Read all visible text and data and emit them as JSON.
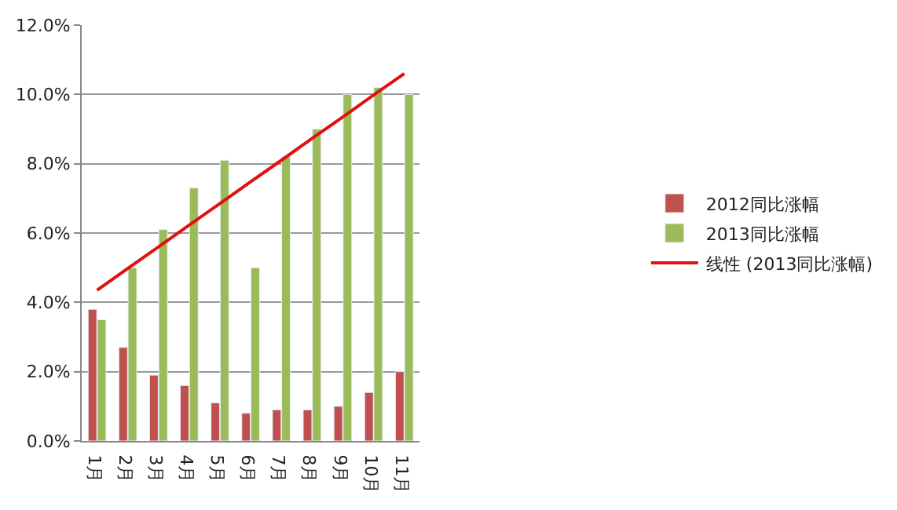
{
  "chart_data": {
    "type": "bar",
    "categories": [
      "1月",
      "2月",
      "3月",
      "4月",
      "5月",
      "6月",
      "7月",
      "8月",
      "9月",
      "10月",
      "11月"
    ],
    "series": [
      {
        "name": "2012同比涨幅",
        "color": "#c0504d",
        "values": [
          3.8,
          2.7,
          1.9,
          1.6,
          1.1,
          0.8,
          0.9,
          0.9,
          1.0,
          1.4,
          2.0
        ]
      },
      {
        "name": "2013同比涨幅",
        "color": "#9bbb59",
        "values": [
          3.5,
          5.0,
          6.1,
          7.3,
          8.1,
          5.0,
          8.2,
          9.0,
          10.0,
          10.2,
          10.0
        ]
      },
      {
        "name": "线性 (2013同比涨幅)",
        "type": "line",
        "color": "#e01010",
        "values": [
          4.35,
          4.98,
          5.6,
          6.23,
          6.85,
          7.48,
          8.1,
          8.73,
          9.35,
          9.98,
          10.6
        ]
      }
    ],
    "ylim": [
      0,
      12
    ],
    "yticks": [
      {
        "value": 0,
        "label": "0.0%"
      },
      {
        "value": 2,
        "label": "2.0%"
      },
      {
        "value": 4,
        "label": "4.0%"
      },
      {
        "value": 6,
        "label": "6.0%"
      },
      {
        "value": 8,
        "label": "8.0%"
      },
      {
        "value": 10,
        "label": "10.0%"
      },
      {
        "value": 12,
        "label": "12.0%"
      }
    ],
    "grid": "y",
    "legend": "right",
    "marker": "none"
  }
}
